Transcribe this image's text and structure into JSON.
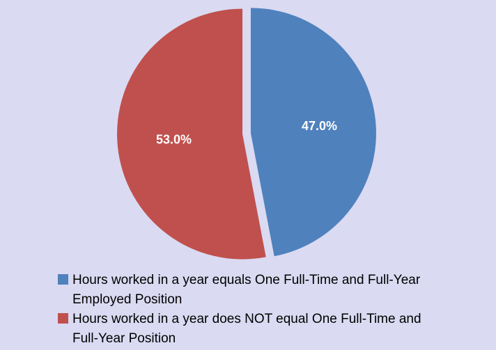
{
  "chart_data": {
    "type": "pie",
    "categories": [
      "Hours worked in a year equals One Full-Time and Full-Year Employed Position",
      "Hours worked in a year does NOT equal One Full-Time and Full-Year Position"
    ],
    "values": [
      47,
      53
    ],
    "value_labels": [
      "47.0%",
      "53.0%"
    ],
    "colors": [
      "#4f81bd",
      "#c0504d"
    ],
    "legend": "bottom"
  }
}
